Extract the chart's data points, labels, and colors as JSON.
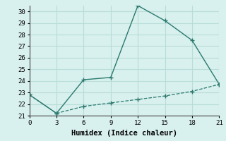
{
  "solid_x": [
    0,
    3,
    6,
    9,
    12,
    15,
    18,
    21
  ],
  "solid_y": [
    22.8,
    21.2,
    24.1,
    24.3,
    30.5,
    29.2,
    27.5,
    23.7
  ],
  "dashed_x": [
    0,
    3,
    6,
    9,
    12,
    15,
    18,
    21
  ],
  "dashed_y": [
    22.8,
    21.2,
    21.8,
    22.1,
    22.4,
    22.7,
    23.1,
    23.7
  ],
  "xlabel": "Humidex (Indice chaleur)",
  "xlim": [
    0,
    21
  ],
  "ylim": [
    21,
    30.5
  ],
  "xticks": [
    0,
    3,
    6,
    9,
    12,
    15,
    18,
    21
  ],
  "yticks": [
    21,
    22,
    23,
    24,
    25,
    26,
    27,
    28,
    29,
    30
  ],
  "line_color": "#2a7a6e",
  "bg_color": "#d8f0ee",
  "grid_color": "#b8ddd9",
  "font_family": "monospace",
  "tick_fontsize": 6.5,
  "xlabel_fontsize": 7.5
}
